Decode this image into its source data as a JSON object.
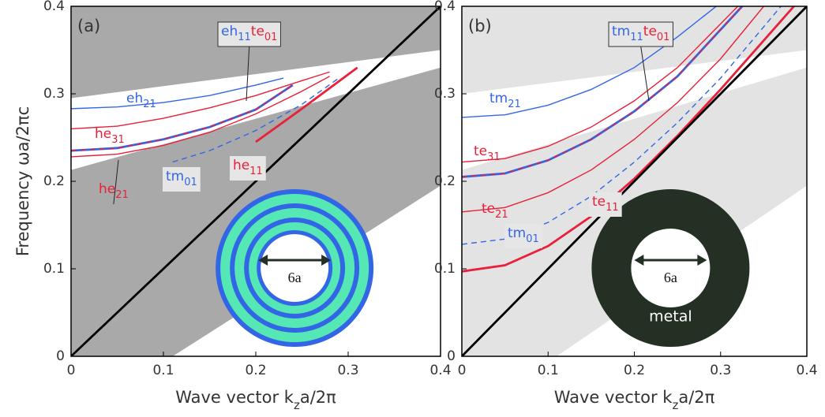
{
  "chart_data": [
    {
      "type": "line",
      "panel_label": "(a)",
      "background": "#a9a9a9",
      "ylabel": "Frequency  ωa/2πc",
      "xlabel": [
        "Wave vector  k",
        "z",
        "a/2π"
      ],
      "xlim": [
        0,
        0.4
      ],
      "ylim": [
        0,
        0.4
      ],
      "xticks": [
        0,
        0.1,
        0.2,
        0.3,
        0.4
      ],
      "yticks": [
        0,
        0.1,
        0.2,
        0.3,
        0.4
      ],
      "regions": [
        {
          "color": "#ffffff",
          "x": [
            0,
            0.4,
            0.4,
            0
          ],
          "y": [
            0.295,
            0.35,
            0.33,
            0.213
          ]
        },
        {
          "color": "#ffffff",
          "x": [
            0.11,
            0.4,
            0.4
          ],
          "y": [
            0,
            0.195,
            0
          ]
        }
      ],
      "series": [
        {
          "color": "#3366e6",
          "style": "thin",
          "x": [
            0,
            0.05,
            0.1,
            0.15,
            0.2,
            0.23
          ],
          "values": [
            0.283,
            0.285,
            0.29,
            0.298,
            0.31,
            0.318
          ]
        },
        {
          "color": "#e8203a",
          "style": "thin",
          "x": [
            0,
            0.05,
            0.1,
            0.15,
            0.2,
            0.25,
            0.28
          ],
          "values": [
            0.26,
            0.263,
            0.272,
            0.284,
            0.298,
            0.315,
            0.325
          ]
        },
        {
          "color": "#3366e6",
          "style": "thick",
          "x": [
            0,
            0.05,
            0.1,
            0.15,
            0.2,
            0.24
          ],
          "values": [
            0.235,
            0.238,
            0.248,
            0.262,
            0.282,
            0.31
          ]
        },
        {
          "color": "#e8203a",
          "style": "dashed",
          "x": [
            0,
            0.05,
            0.1,
            0.15,
            0.2,
            0.24
          ],
          "values": [
            0.235,
            0.238,
            0.248,
            0.262,
            0.282,
            0.31
          ]
        },
        {
          "color": "#e8203a",
          "style": "thin",
          "x": [
            0,
            0.05,
            0.1,
            0.15,
            0.2,
            0.25,
            0.28
          ],
          "values": [
            0.228,
            0.231,
            0.241,
            0.256,
            0.277,
            0.303,
            0.32
          ]
        },
        {
          "color": "#3366e6",
          "style": "dashed",
          "x": [
            0.11,
            0.15,
            0.2,
            0.25,
            0.29
          ],
          "values": [
            0.222,
            0.235,
            0.258,
            0.288,
            0.318
          ]
        },
        {
          "color": "#e8203a",
          "style": "thick",
          "x": [
            0.2,
            0.25,
            0.31
          ],
          "values": [
            0.245,
            0.283,
            0.33
          ]
        },
        {
          "color": "#000000",
          "style": "thick",
          "x": [
            0,
            0.4
          ],
          "values": [
            0,
            0.4
          ]
        }
      ],
      "annotations": [
        [
          {
            "text": "eh",
            "sub": "21",
            "color": "#3366e6"
          }
        ],
        [
          {
            "text": "he",
            "sub": "31",
            "color": "#e8203a"
          }
        ],
        [
          {
            "text": "he",
            "sub": "21",
            "color": "#e8203a"
          }
        ],
        [
          {
            "text": "tm",
            "sub": "01",
            "color": "#3366e6"
          }
        ],
        [
          {
            "text": "he",
            "sub": "11",
            "color": "#e8203a"
          }
        ],
        [
          {
            "text": "eh",
            "sub": "11",
            "color": "#3366e6"
          },
          {
            "text": "te",
            "sub": "01",
            "color": "#e8203a"
          }
        ]
      ],
      "inset_labels": [
        "6a"
      ]
    },
    {
      "type": "line",
      "panel_label": "(b)",
      "background": "#e3e3e3",
      "xlabel": [
        "Wave vector  k",
        "z",
        "a/2π"
      ],
      "xlim": [
        0,
        0.4
      ],
      "ylim": [
        0,
        0.4
      ],
      "xticks": [
        0,
        0.1,
        0.2,
        0.3,
        0.4
      ],
      "yticks": [
        0,
        0.1,
        0.2,
        0.3,
        0.4
      ],
      "regions": [
        {
          "color": "#ffffff",
          "x": [
            0,
            0.4,
            0.4,
            0
          ],
          "y": [
            0.3,
            0.35,
            0.33,
            0.213
          ]
        },
        {
          "color": "#ffffff",
          "x": [
            0.11,
            0.4,
            0.4
          ],
          "y": [
            0,
            0.195,
            0
          ]
        }
      ],
      "series": [
        {
          "color": "#3366e6",
          "style": "thin",
          "x": [
            0,
            0.05,
            0.1,
            0.15,
            0.2,
            0.25,
            0.295
          ],
          "values": [
            0.273,
            0.276,
            0.287,
            0.305,
            0.33,
            0.365,
            0.4
          ]
        },
        {
          "color": "#e8203a",
          "style": "thin",
          "x": [
            0,
            0.05,
            0.1,
            0.15,
            0.2,
            0.25,
            0.32
          ],
          "values": [
            0.222,
            0.226,
            0.24,
            0.262,
            0.292,
            0.33,
            0.4
          ]
        },
        {
          "color": "#3366e6",
          "style": "thick",
          "x": [
            0,
            0.05,
            0.1,
            0.15,
            0.2,
            0.25,
            0.325
          ],
          "values": [
            0.205,
            0.209,
            0.224,
            0.248,
            0.28,
            0.32,
            0.4
          ]
        },
        {
          "color": "#e8203a",
          "style": "dashed",
          "x": [
            0,
            0.05,
            0.1,
            0.15,
            0.2,
            0.25,
            0.325
          ],
          "values": [
            0.205,
            0.209,
            0.224,
            0.248,
            0.28,
            0.32,
            0.4
          ]
        },
        {
          "color": "#e8203a",
          "style": "thin",
          "x": [
            0,
            0.05,
            0.1,
            0.15,
            0.2,
            0.25,
            0.3,
            0.35
          ],
          "values": [
            0.165,
            0.17,
            0.187,
            0.213,
            0.248,
            0.29,
            0.34,
            0.4
          ]
        },
        {
          "color": "#3366e6",
          "style": "dashed",
          "x": [
            0,
            0.05,
            0.1,
            0.15,
            0.2,
            0.25,
            0.3,
            0.37
          ],
          "values": [
            0.128,
            0.134,
            0.153,
            0.183,
            0.222,
            0.267,
            0.318,
            0.4
          ]
        },
        {
          "color": "#e8203a",
          "style": "thick",
          "x": [
            0,
            0.05,
            0.1,
            0.15,
            0.2,
            0.25,
            0.3,
            0.385
          ],
          "values": [
            0.097,
            0.104,
            0.126,
            0.16,
            0.203,
            0.252,
            0.305,
            0.4
          ]
        },
        {
          "color": "#000000",
          "style": "thick",
          "x": [
            0,
            0.4
          ],
          "values": [
            0,
            0.4
          ]
        }
      ],
      "annotations": [
        [
          {
            "text": "tm",
            "sub": "21",
            "color": "#3366e6"
          }
        ],
        [
          {
            "text": "te",
            "sub": "31",
            "color": "#e8203a"
          }
        ],
        [
          {
            "text": "te",
            "sub": "21",
            "color": "#e8203a"
          }
        ],
        [
          {
            "text": "tm",
            "sub": "01",
            "color": "#3366e6"
          }
        ],
        [
          {
            "text": "te",
            "sub": "11",
            "color": "#e8203a"
          }
        ],
        [
          {
            "text": "tm",
            "sub": "11",
            "color": "#3366e6"
          },
          {
            "text": "te",
            "sub": "01",
            "color": "#e8203a"
          }
        ]
      ],
      "inset_labels": [
        "6a",
        "metal"
      ]
    }
  ]
}
